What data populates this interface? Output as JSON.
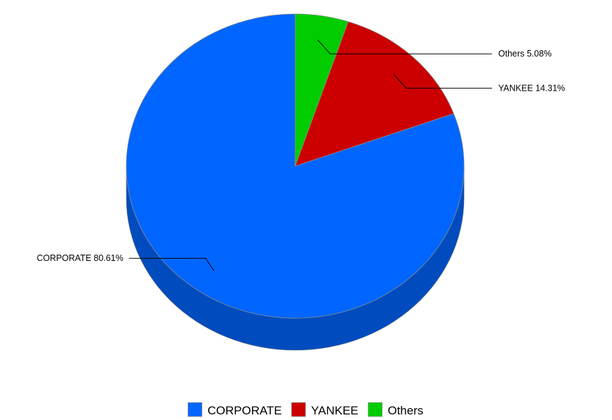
{
  "chart_data": {
    "type": "pie",
    "style": "3d",
    "start_angle": "12 o'clock",
    "direction": "counterclockwise",
    "legend_position": "bottom-center",
    "slices": [
      {
        "name": "CORPORATE",
        "value": 80.61,
        "label": "CORPORATE 80.61%",
        "color": "#0066ff",
        "side_color": "#004cbf"
      },
      {
        "name": "YANKEE",
        "value": 14.31,
        "label": "YANKEE 14.31%",
        "color": "#cc0000",
        "side_color": "#990000"
      },
      {
        "name": "Others",
        "value": 5.08,
        "label": "Others 5.08%",
        "color": "#00cc00",
        "side_color": "#009900"
      }
    ]
  }
}
